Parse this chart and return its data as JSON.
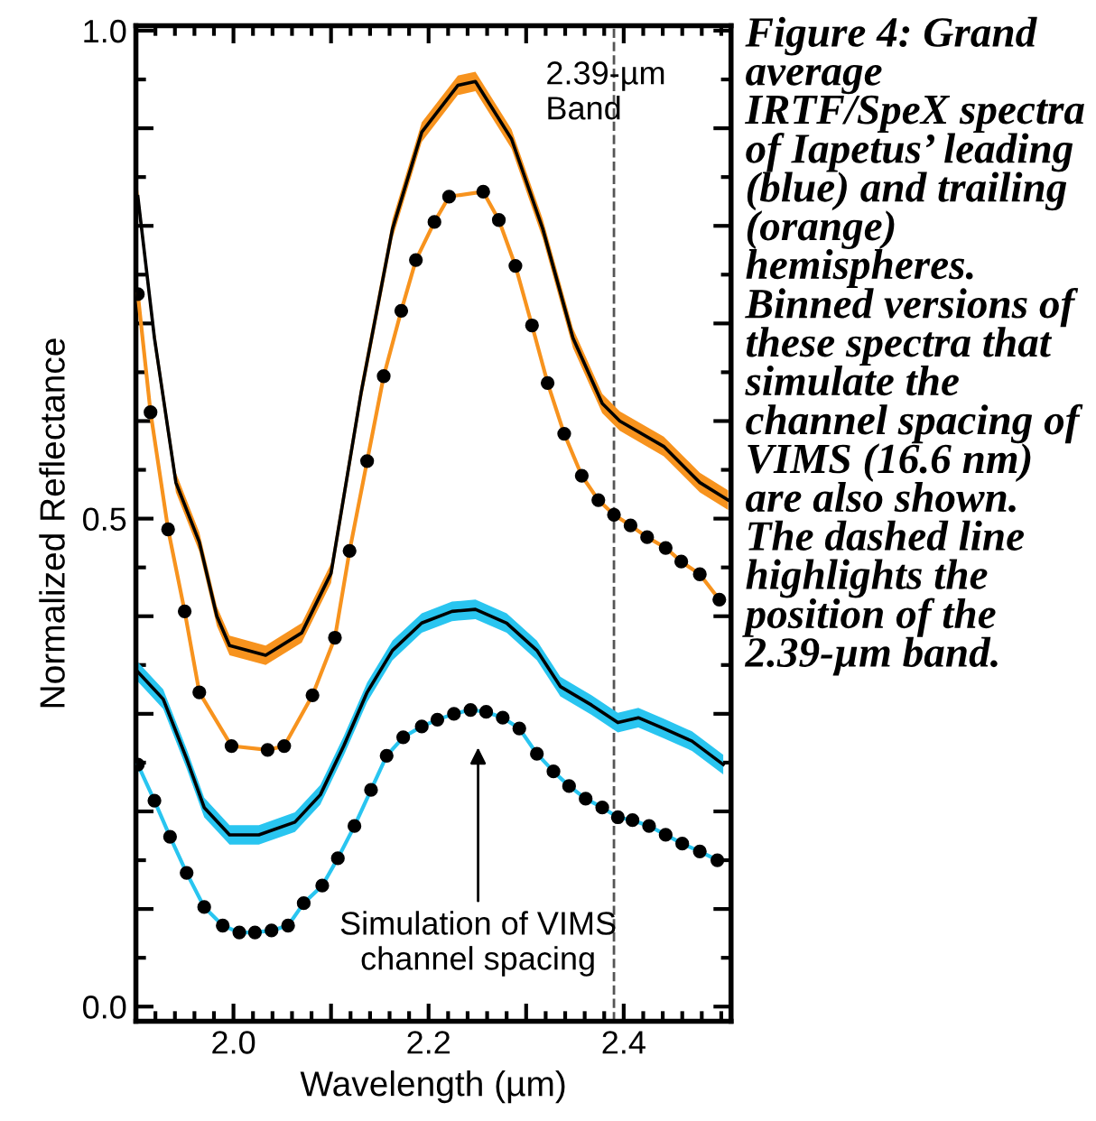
{
  "chart_data": {
    "type": "line",
    "xlabel": "Wavelength (µm)",
    "ylabel": "Normalized Reflectance",
    "xlim": [
      1.9,
      2.51
    ],
    "ylim": [
      -0.015,
      1.005
    ],
    "xticks": [
      {
        "value": 2.0,
        "label": "2.0"
      },
      {
        "value": 2.1,
        "label": null
      },
      2.2,
      {
        "value": 2.3,
        "label": null
      },
      2.4
    ],
    "yticks": [
      {
        "value": 0.0,
        "label": "0.0"
      },
      {
        "value": 0.1,
        "label": null
      },
      {
        "value": 0.2,
        "label": null
      },
      {
        "value": 0.3,
        "label": null
      },
      {
        "value": 0.4,
        "label": null
      },
      0.5,
      {
        "value": 0.6,
        "label": null
      },
      {
        "value": 0.7,
        "label": null
      },
      {
        "value": 0.8,
        "label": null
      },
      {
        "value": 0.9,
        "label": null
      },
      {
        "value": 1.0,
        "label": "1.0"
      }
    ],
    "grid": false,
    "series": [
      {
        "color": "#000000",
        "marker": "none",
        "x": [
          1.902,
          1.919,
          1.941,
          1.965,
          1.983,
          1.996,
          2.033,
          2.07,
          2.1,
          2.131,
          2.163,
          2.193,
          2.23,
          2.248,
          2.285,
          2.317,
          2.348,
          2.378,
          2.396,
          2.441,
          2.478,
          2.507
        ],
        "values": [
          0.83,
          0.685,
          0.537,
          0.476,
          0.4,
          0.37,
          0.36,
          0.383,
          0.444,
          0.63,
          0.797,
          0.896,
          0.944,
          0.948,
          0.889,
          0.797,
          0.685,
          0.618,
          0.6,
          0.574,
          0.537,
          0.519
        ],
        "lower": [
          0.82,
          0.675,
          0.527,
          0.466,
          0.39,
          0.36,
          0.35,
          0.373,
          0.434,
          0.62,
          0.787,
          0.886,
          0.934,
          0.938,
          0.879,
          0.787,
          0.675,
          0.608,
          0.59,
          0.564,
          0.527,
          0.509
        ],
        "upper": [
          0.84,
          0.695,
          0.547,
          0.486,
          0.41,
          0.38,
          0.37,
          0.393,
          0.454,
          0.64,
          0.807,
          0.906,
          0.954,
          0.958,
          0.899,
          0.807,
          0.695,
          0.628,
          0.61,
          0.584,
          0.547,
          0.529
        ]
      },
      {
        "color": "#f7931e",
        "marker": "circle",
        "x": [
          1.902,
          1.915,
          1.933,
          1.95,
          1.965,
          1.998,
          2.035,
          2.052,
          2.081,
          2.104,
          2.119,
          2.137,
          2.154,
          2.172,
          2.187,
          2.206,
          2.221,
          2.256,
          2.272,
          2.289,
          2.306,
          2.322,
          2.339,
          2.357,
          2.374,
          2.39,
          2.407,
          2.424,
          2.443,
          2.459,
          2.478,
          2.498
        ],
        "values": [
          0.73,
          0.609,
          0.489,
          0.405,
          0.322,
          0.267,
          0.263,
          0.267,
          0.319,
          0.378,
          0.467,
          0.559,
          0.646,
          0.713,
          0.765,
          0.804,
          0.83,
          0.835,
          0.806,
          0.759,
          0.698,
          0.639,
          0.587,
          0.544,
          0.519,
          0.504,
          0.493,
          0.481,
          0.47,
          0.456,
          0.443,
          0.417
        ]
      },
      {
        "color": "#000000",
        "marker": "none",
        "x": [
          1.902,
          1.928,
          1.952,
          1.97,
          1.996,
          2.026,
          2.063,
          2.089,
          2.113,
          2.137,
          2.163,
          2.193,
          2.224,
          2.248,
          2.28,
          2.311,
          2.335,
          2.367,
          2.394,
          2.415,
          2.441,
          2.47,
          2.502
        ],
        "values": [
          0.343,
          0.315,
          0.254,
          0.204,
          0.176,
          0.176,
          0.189,
          0.217,
          0.267,
          0.322,
          0.365,
          0.393,
          0.405,
          0.407,
          0.393,
          0.365,
          0.328,
          0.309,
          0.291,
          0.296,
          0.285,
          0.272,
          0.248
        ],
        "lower": [
          0.333,
          0.305,
          0.244,
          0.194,
          0.166,
          0.166,
          0.179,
          0.207,
          0.257,
          0.312,
          0.355,
          0.383,
          0.395,
          0.397,
          0.383,
          0.355,
          0.318,
          0.299,
          0.281,
          0.286,
          0.275,
          0.262,
          0.238
        ],
        "upper": [
          0.353,
          0.325,
          0.264,
          0.214,
          0.186,
          0.186,
          0.199,
          0.227,
          0.277,
          0.332,
          0.375,
          0.403,
          0.415,
          0.417,
          0.403,
          0.375,
          0.338,
          0.319,
          0.301,
          0.306,
          0.295,
          0.282,
          0.258
        ]
      },
      {
        "color": "#29c5f0",
        "marker": "circle",
        "x": [
          1.902,
          1.919,
          1.935,
          1.952,
          1.97,
          1.989,
          2.006,
          2.022,
          2.039,
          2.056,
          2.072,
          2.091,
          2.107,
          2.124,
          2.141,
          2.157,
          2.174,
          2.193,
          2.209,
          2.226,
          2.243,
          2.259,
          2.276,
          2.293,
          2.311,
          2.328,
          2.344,
          2.361,
          2.378,
          2.394,
          2.409,
          2.426,
          2.443,
          2.46,
          2.478,
          2.496
        ],
        "values": [
          0.248,
          0.211,
          0.174,
          0.137,
          0.102,
          0.083,
          0.076,
          0.076,
          0.078,
          0.083,
          0.106,
          0.124,
          0.152,
          0.185,
          0.222,
          0.257,
          0.276,
          0.287,
          0.294,
          0.3,
          0.304,
          0.302,
          0.296,
          0.285,
          0.259,
          0.241,
          0.226,
          0.213,
          0.204,
          0.194,
          0.191,
          0.185,
          0.176,
          0.167,
          0.159,
          0.15
        ]
      }
    ],
    "ref_lines": [
      {
        "axis": "x",
        "value": 2.39,
        "label": "2.39-µm\nBand",
        "color": "#555555",
        "line_style": "dashed"
      }
    ],
    "annotations": [
      "Simulation of VIMS\nchannel spacing",
      "Figure 4: Grand average IRTF/SpeX spectra of Iapetus’ leading (blue) and trailing (orange) hemispheres. Binned versions of these spectra that simulate the channel spacing of VIMS (16.6 nm) are also shown. The dashed line highlights the position of the 2.39-µm band."
    ]
  }
}
